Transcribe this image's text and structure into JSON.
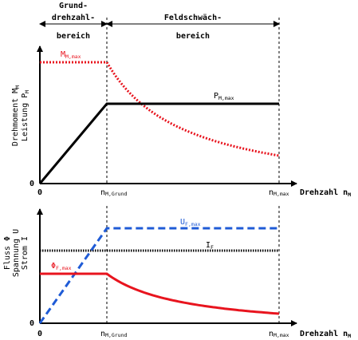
{
  "header": {
    "region_left_line1": "Grund-",
    "region_left_line2": "drehzahl-",
    "region_left_line3": "bereich",
    "region_right_line1": "Feldschwäch-",
    "region_right_line2": "bereich"
  },
  "top_plot": {
    "ylabel_line1": "Drehmoment M",
    "ylabel_line1_sub": "M",
    "ylabel_line2": "Leistung P",
    "ylabel_line2_sub": "M",
    "torque_label": "M",
    "torque_label_sub": "M,max",
    "power_label": "P",
    "power_label_sub": "M,max",
    "torque_color": "#e8141e",
    "power_color": "#000000",
    "y_zero": "0",
    "x_zero": "0",
    "x_tick_grund": "n",
    "x_tick_grund_sub": "M,Grund",
    "x_tick_max": "n",
    "x_tick_max_sub": "M,max",
    "xlabel": "Drehzahl n",
    "xlabel_sub": "M"
  },
  "bottom_plot": {
    "ylabel_line1": "Fluss Φ",
    "ylabel_line2": "Spannung U",
    "ylabel_line3": "Strom I",
    "voltage_label": "U",
    "voltage_label_sub": "F,max",
    "current_label": "I",
    "current_label_sub": "F",
    "flux_label": "Φ",
    "flux_label_sub": "F,max",
    "voltage_color": "#1f5bd6",
    "current_color": "#000000",
    "flux_color": "#e8141e",
    "y_zero": "0",
    "x_zero": "0",
    "x_tick_grund": "n",
    "x_tick_grund_sub": "M,Grund",
    "x_tick_max": "n",
    "x_tick_max_sub": "M,max",
    "xlabel": "Drehzahl n",
    "xlabel_sub": "M"
  }
}
